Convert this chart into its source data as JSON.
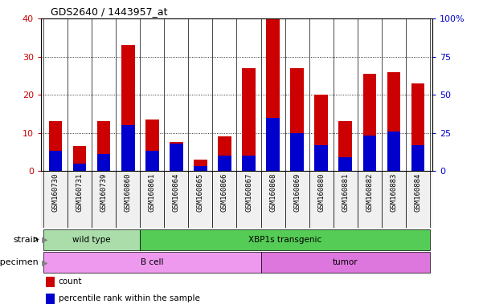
{
  "title": "GDS2640 / 1443957_at",
  "samples": [
    "GSM160730",
    "GSM160731",
    "GSM160739",
    "GSM160860",
    "GSM160861",
    "GSM160864",
    "GSM160865",
    "GSM160866",
    "GSM160867",
    "GSM160868",
    "GSM160869",
    "GSM160880",
    "GSM160881",
    "GSM160882",
    "GSM160883",
    "GSM160884"
  ],
  "counts": [
    13,
    6.5,
    13,
    33,
    13.5,
    7.5,
    3,
    9,
    27,
    40,
    27,
    20,
    13,
    25.5,
    26,
    23
  ],
  "percentile_ranks_pct": [
    13,
    5,
    11,
    30,
    13,
    18,
    3,
    10,
    10,
    35,
    25,
    17,
    9,
    23,
    26,
    17
  ],
  "bar_color": "#cc0000",
  "percentile_color": "#0000cc",
  "ylim_left": [
    0,
    40
  ],
  "ylim_right": [
    0,
    100
  ],
  "yticks_left": [
    0,
    10,
    20,
    30,
    40
  ],
  "yticks_right": [
    0,
    25,
    50,
    75,
    100
  ],
  "ytick_labels_right": [
    "0",
    "25",
    "50",
    "75",
    "100%"
  ],
  "ylabel_left_color": "#cc0000",
  "ylabel_right_color": "#0000cc",
  "strain_groups": [
    {
      "label": "wild type",
      "start": 0,
      "end": 4,
      "color": "#aaddaa"
    },
    {
      "label": "XBP1s transgenic",
      "start": 4,
      "end": 16,
      "color": "#55cc55"
    }
  ],
  "specimen_groups": [
    {
      "label": "B cell",
      "start": 0,
      "end": 9,
      "color": "#ee99ee"
    },
    {
      "label": "tumor",
      "start": 9,
      "end": 16,
      "color": "#dd77dd"
    }
  ],
  "strain_label": "strain",
  "specimen_label": "specimen",
  "legend_items": [
    {
      "color": "#cc0000",
      "label": "count"
    },
    {
      "color": "#0000cc",
      "label": "percentile rank within the sample"
    }
  ],
  "bar_width": 0.55,
  "tick_label_bg": "#cccccc",
  "bg_color": "#f0f0f0"
}
